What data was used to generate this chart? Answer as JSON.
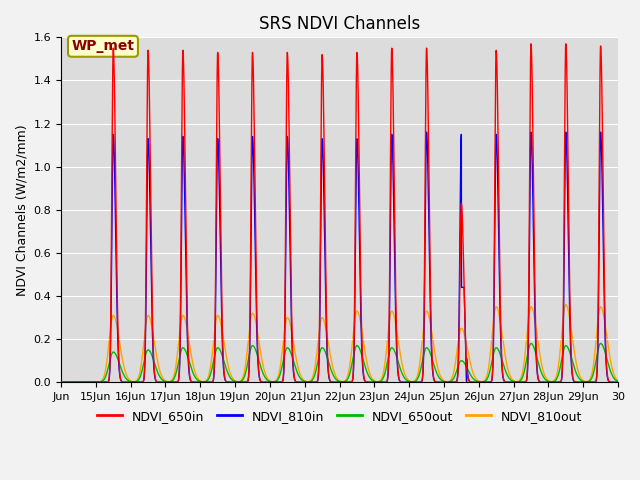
{
  "title": "SRS NDVI Channels",
  "ylabel": "NDVI Channels (W/m2/mm)",
  "annotation": "WP_met",
  "ylim": [
    0.0,
    1.6
  ],
  "yticks": [
    0.0,
    0.2,
    0.4,
    0.6,
    0.8,
    1.0,
    1.2,
    1.4,
    1.6
  ],
  "xtick_labels": [
    "Jun",
    "15Jun",
    "16Jun",
    "17Jun",
    "18Jun",
    "19Jun",
    "20Jun",
    "21Jun",
    "22Jun",
    "23Jun",
    "24Jun",
    "25Jun",
    "26Jun",
    "27Jun",
    "28Jun",
    "29Jun",
    "30"
  ],
  "series_colors": {
    "NDVI_650in": "#FF0000",
    "NDVI_810in": "#0000FF",
    "NDVI_650out": "#00BB00",
    "NDVI_810out": "#FFA500"
  },
  "peak_650in": [
    1.55,
    1.54,
    1.54,
    1.53,
    1.53,
    1.53,
    1.52,
    1.53,
    1.55,
    1.55,
    0.83,
    1.54,
    1.57,
    1.57,
    1.56
  ],
  "peak_810in": [
    1.15,
    1.13,
    1.14,
    1.13,
    1.14,
    1.14,
    1.13,
    1.13,
    1.15,
    1.16,
    1.15,
    1.15,
    1.16,
    1.16,
    1.16
  ],
  "peak_650out": [
    0.14,
    0.15,
    0.16,
    0.16,
    0.17,
    0.16,
    0.16,
    0.17,
    0.16,
    0.16,
    0.1,
    0.16,
    0.18,
    0.17,
    0.18
  ],
  "peak_810out": [
    0.31,
    0.31,
    0.31,
    0.31,
    0.32,
    0.3,
    0.3,
    0.33,
    0.33,
    0.33,
    0.25,
    0.35,
    0.35,
    0.36,
    0.35
  ],
  "anomaly_day_idx": 10,
  "background_color": "#DCDCDC",
  "fig_facecolor": "#F2F2F2",
  "title_fontsize": 12,
  "legend_fontsize": 9,
  "tick_fontsize": 8,
  "ylabel_fontsize": 9
}
